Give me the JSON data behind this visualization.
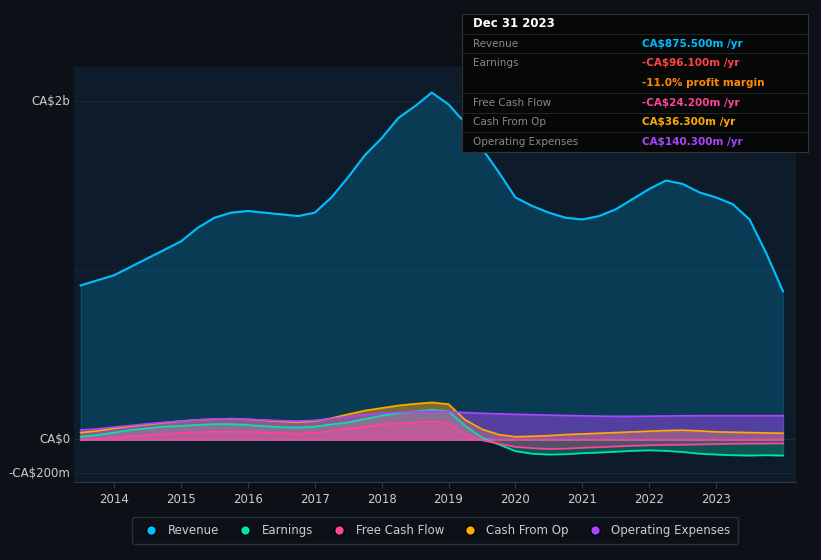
{
  "bg_color": "#0d1117",
  "plot_bg_color": "#0d1b2a",
  "grid_color": "#1a2a3a",
  "text_color": "#cccccc",
  "ylabel_ca2b": "CA$2b",
  "ylabel_ca0": "CA$0",
  "ylabel_ca200": "-CA$200m",
  "years": [
    2013.5,
    2013.75,
    2014.0,
    2014.25,
    2014.5,
    2014.75,
    2015.0,
    2015.25,
    2015.5,
    2015.75,
    2016.0,
    2016.25,
    2016.5,
    2016.75,
    2017.0,
    2017.25,
    2017.5,
    2017.75,
    2018.0,
    2018.25,
    2018.5,
    2018.75,
    2019.0,
    2019.25,
    2019.5,
    2019.75,
    2020.0,
    2020.25,
    2020.5,
    2020.75,
    2021.0,
    2021.25,
    2021.5,
    2021.75,
    2022.0,
    2022.25,
    2022.5,
    2022.75,
    2023.0,
    2023.25,
    2023.5,
    2023.75,
    2024.0
  ],
  "revenue": [
    910,
    940,
    970,
    1020,
    1070,
    1120,
    1170,
    1250,
    1310,
    1340,
    1350,
    1340,
    1330,
    1320,
    1340,
    1430,
    1550,
    1680,
    1780,
    1900,
    1970,
    2050,
    1980,
    1870,
    1720,
    1580,
    1430,
    1380,
    1340,
    1310,
    1300,
    1320,
    1360,
    1420,
    1480,
    1530,
    1510,
    1460,
    1430,
    1390,
    1300,
    1100,
    875
  ],
  "earnings": [
    15,
    25,
    40,
    55,
    65,
    75,
    80,
    85,
    90,
    90,
    85,
    78,
    72,
    70,
    75,
    88,
    100,
    120,
    140,
    155,
    165,
    175,
    165,
    80,
    10,
    -30,
    -70,
    -85,
    -90,
    -88,
    -82,
    -78,
    -73,
    -68,
    -65,
    -68,
    -75,
    -85,
    -90,
    -94,
    -96,
    -94,
    -96
  ],
  "free_cash_flow": [
    -5,
    2,
    10,
    18,
    25,
    32,
    38,
    42,
    45,
    46,
    44,
    40,
    36,
    34,
    38,
    50,
    62,
    75,
    88,
    95,
    100,
    105,
    95,
    30,
    -5,
    -25,
    -45,
    -52,
    -57,
    -55,
    -50,
    -46,
    -42,
    -38,
    -35,
    -33,
    -32,
    -30,
    -28,
    -26,
    -25,
    -25,
    -24
  ],
  "cash_from_op": [
    40,
    50,
    65,
    78,
    88,
    98,
    108,
    115,
    120,
    122,
    118,
    112,
    106,
    102,
    108,
    125,
    148,
    170,
    185,
    200,
    210,
    218,
    208,
    115,
    60,
    28,
    15,
    18,
    22,
    28,
    32,
    36,
    40,
    44,
    48,
    52,
    54,
    50,
    44,
    42,
    40,
    38,
    36
  ],
  "operating_expenses": [
    55,
    62,
    72,
    82,
    92,
    100,
    108,
    115,
    120,
    122,
    118,
    114,
    110,
    108,
    112,
    122,
    134,
    146,
    155,
    160,
    163,
    166,
    163,
    158,
    154,
    151,
    148,
    146,
    143,
    141,
    139,
    137,
    136,
    136,
    137,
    138,
    139,
    140,
    140,
    140,
    140,
    140,
    140
  ],
  "revenue_color": "#00bfff",
  "earnings_color": "#00e5b0",
  "free_cash_flow_color": "#ff4499",
  "cash_from_op_color": "#ffaa00",
  "operating_expenses_color": "#aa44ff",
  "legend_items": [
    "Revenue",
    "Earnings",
    "Free Cash Flow",
    "Cash From Op",
    "Operating Expenses"
  ],
  "legend_colors": [
    "#00bfff",
    "#00e5b0",
    "#ff4499",
    "#ffaa00",
    "#aa44ff"
  ],
  "tooltip_title": "Dec 31 2023",
  "tooltip_rows": [
    [
      "Revenue",
      "CA$875.500m /yr",
      "#00bfff"
    ],
    [
      "Earnings",
      "-CA$96.100m /yr",
      "#ff4444"
    ],
    [
      "",
      "-11.0% profit margin",
      "#ff8800"
    ],
    [
      "Free Cash Flow",
      "-CA$24.200m /yr",
      "#ff4499"
    ],
    [
      "Cash From Op",
      "CA$36.300m /yr",
      "#ffaa00"
    ],
    [
      "Operating Expenses",
      "CA$140.300m /yr",
      "#aa44ff"
    ]
  ]
}
